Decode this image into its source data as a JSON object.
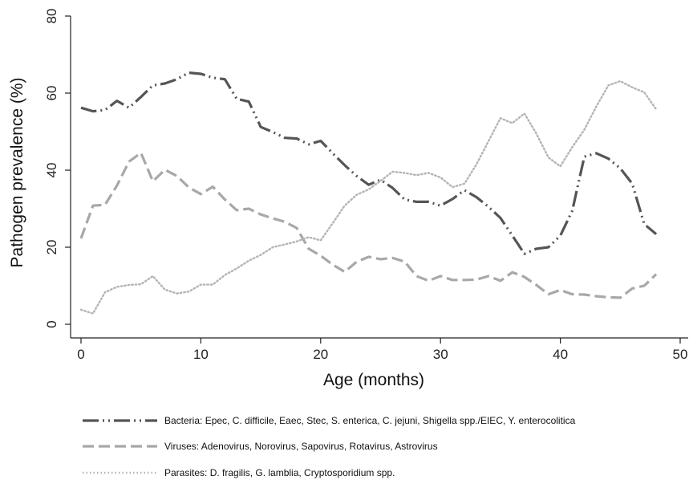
{
  "chart_data": {
    "type": "line",
    "title": "",
    "xlabel": "Age (months)",
    "ylabel": "Pathogen prevalence (%)",
    "xlim": [
      0,
      50
    ],
    "ylim": [
      0,
      80
    ],
    "x_ticks": [
      0,
      10,
      20,
      30,
      40,
      50
    ],
    "y_ticks": [
      0,
      20,
      40,
      60,
      80
    ],
    "grid": false,
    "legend_position": "bottom",
    "x": [
      0,
      1,
      2,
      3,
      4,
      5,
      6,
      7,
      8,
      9,
      10,
      11,
      12,
      13,
      14,
      15,
      16,
      17,
      18,
      19,
      20,
      21,
      22,
      23,
      24,
      25,
      26,
      27,
      28,
      29,
      30,
      31,
      32,
      33,
      34,
      35,
      36,
      37,
      38,
      39,
      40,
      41,
      42,
      43,
      44,
      45,
      46,
      47,
      48
    ],
    "series": [
      {
        "name": "Bacteria: Epec, C. difficile, Eaec, Stec, S. enterica, C. jejuni, Shigella spp./EIEC, Y. enterocolitica",
        "style": "dash-dot-dot",
        "color": "#555555",
        "values": [
          56.2,
          55.3,
          55.6,
          58,
          56.2,
          59,
          62,
          62.5,
          63.6,
          65.3,
          65,
          64,
          63.6,
          58.5,
          57.8,
          51.2,
          49.9,
          48.4,
          48.2,
          46.7,
          47.6,
          44.4,
          41.3,
          38.5,
          36.2,
          37.5,
          35.4,
          32.4,
          31.8,
          31.8,
          30.8,
          32.5,
          34.8,
          33,
          30.5,
          27.6,
          23,
          18.3,
          19.6,
          20,
          23,
          29.5,
          43.5,
          44.4,
          43,
          40.5,
          36.5,
          26,
          23.4
        ]
      },
      {
        "name": "Viruses: Adenovirus, Norovirus, Sapovirus, Rotavirus, Astrovirus",
        "style": "dash",
        "color": "#a8a8a8",
        "values": [
          22.3,
          30.8,
          31,
          36,
          42.2,
          44.5,
          37.1,
          40.1,
          38.5,
          35.5,
          33.8,
          35.7,
          32.4,
          29.6,
          30,
          28.5,
          27.5,
          26.6,
          25,
          19.6,
          17.8,
          15.5,
          13.6,
          16.2,
          17.5,
          16.9,
          17.2,
          16.3,
          12.5,
          11.3,
          12.5,
          11.5,
          11.5,
          11.6,
          12.5,
          11.3,
          13.5,
          12.3,
          10.2,
          7.8,
          8.9,
          7.8,
          7.7,
          7.3,
          7,
          6.9,
          9.3,
          10,
          13
        ]
      },
      {
        "name": "Parasites: D. fragilis, G. lamblia, Cryptosporidium spp.",
        "style": "dot",
        "color": "#b4b4b4",
        "values": [
          3.8,
          2.8,
          8.3,
          9.7,
          10.2,
          10.4,
          12.5,
          9,
          8,
          8.5,
          10.3,
          10.3,
          12.8,
          14.5,
          16.5,
          18,
          20,
          20.7,
          21.5,
          22.6,
          21.8,
          26.2,
          30.8,
          33.6,
          35,
          37.2,
          39.6,
          39.3,
          38.7,
          39.3,
          38.1,
          35.6,
          36.5,
          41.5,
          47.5,
          53.5,
          52.2,
          54.7,
          49.5,
          43.3,
          41,
          46,
          50.5,
          56.5,
          62,
          63.1,
          61.5,
          60.2,
          55.8
        ]
      }
    ]
  }
}
